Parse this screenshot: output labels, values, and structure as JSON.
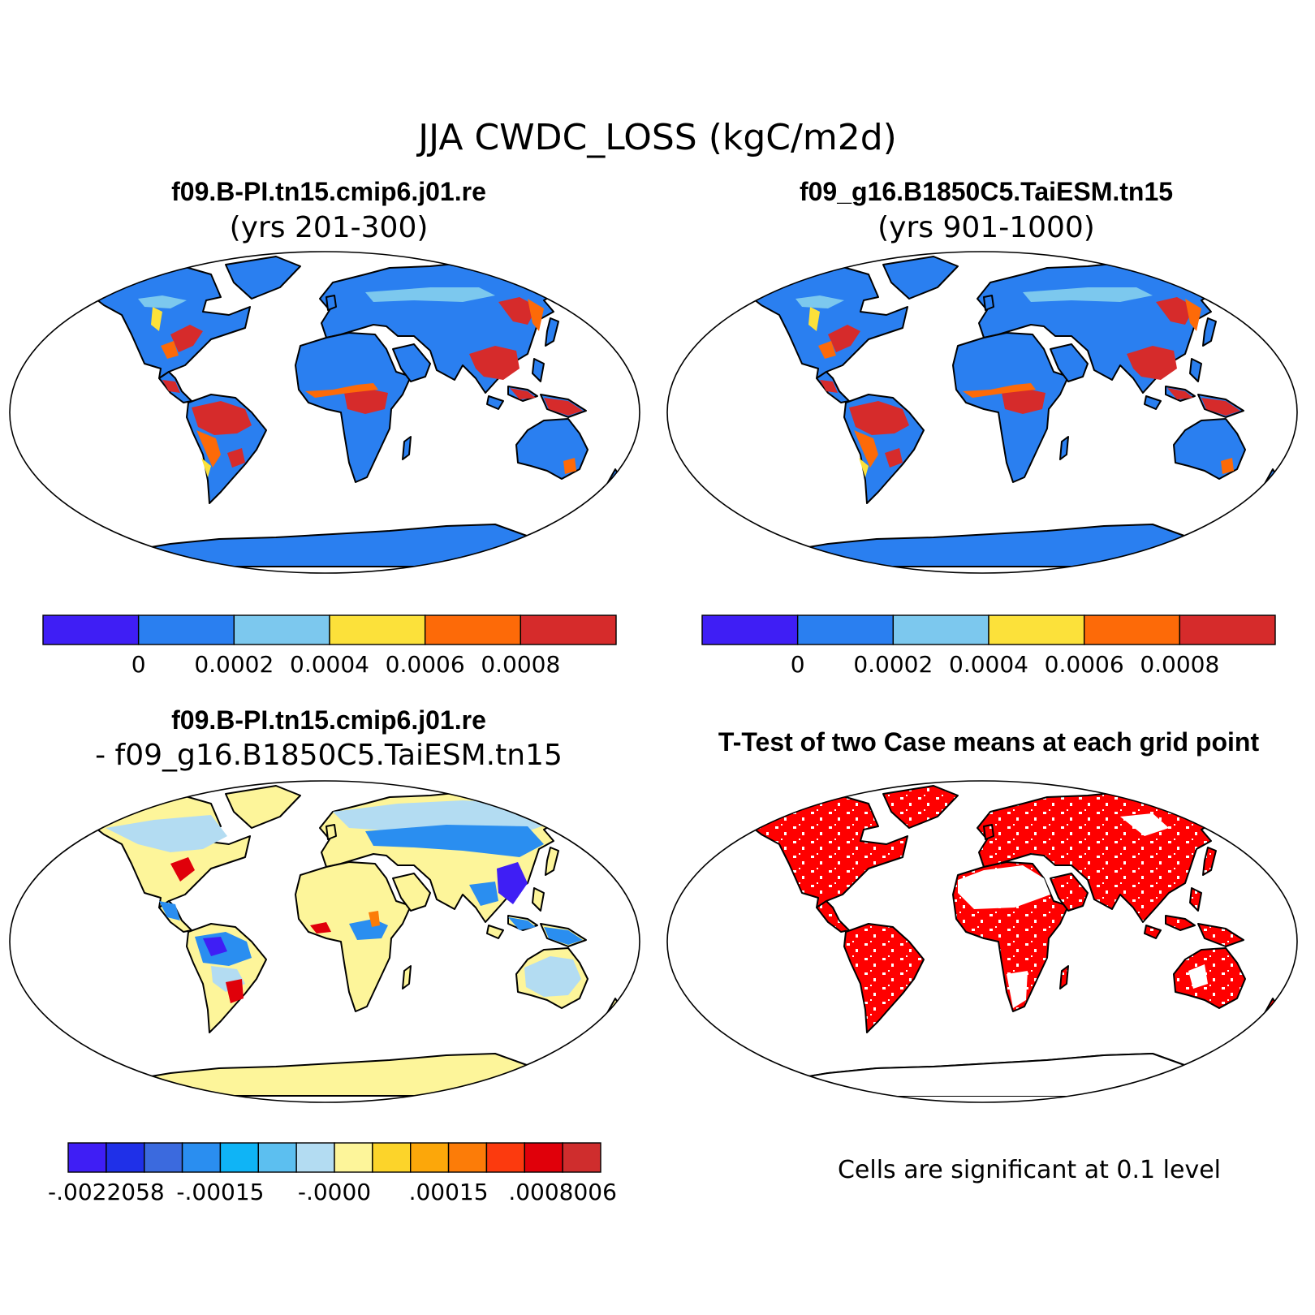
{
  "figure": {
    "title": "JJA CWDC_LOSS (kgC/m2d)"
  },
  "panels": [
    {
      "id": "case1",
      "title_line1": "f09.B-PI.tn15.cmip6.j01.re",
      "title_line2": "(yrs 201-300)",
      "colorbar": {
        "colors": [
          "#3f1ef5",
          "#2a7ff0",
          "#7cc8ee",
          "#fce13a",
          "#fd6a08",
          "#d62b2b"
        ],
        "labels": [
          "0",
          "0.0002",
          "0.0004",
          "0.0006",
          "0.0008"
        ]
      }
    },
    {
      "id": "case2",
      "title_line1": "f09_g16.B1850C5.TaiESM.tn15",
      "title_line2": "(yrs 901-1000)",
      "colorbar": {
        "colors": [
          "#3f1ef5",
          "#2a7ff0",
          "#7cc8ee",
          "#fce13a",
          "#fd6a08",
          "#d62b2b"
        ],
        "labels": [
          "0",
          "0.0002",
          "0.0004",
          "0.0006",
          "0.0008"
        ]
      }
    },
    {
      "id": "diff",
      "title_line1": "f09.B-PI.tn15.cmip6.j01.re",
      "title_line2": "- f09_g16.B1850C5.TaiESM.tn15",
      "colorbar": {
        "colors": [
          "#3f1ef5",
          "#1f30e8",
          "#3b6ade",
          "#2a8ef0",
          "#0fb4f6",
          "#5cbff0",
          "#b3dcf2",
          "#fdf59a",
          "#fcd42a",
          "#fca70a",
          "#fc7c08",
          "#fc3a0e",
          "#e0000a",
          "#cf2d2d"
        ],
        "labels": [
          "-.0022058",
          "-.00015",
          "-.0000",
          ".00015",
          ".0008006"
        ]
      }
    },
    {
      "id": "ttest",
      "title_line1": "T-Test of two Case means at each grid point",
      "note": "Cells are significant at 0.1 level"
    }
  ],
  "map_colors": {
    "case_land": "#2a7ff0",
    "case_hot": "#d62b2b",
    "case_warm": "#fd6a08",
    "case_mid": "#fce13a",
    "case_light": "#7cc8ee",
    "diff_land": "#fdf59a",
    "diff_blue": "#2a8ef0",
    "diff_lightblue": "#b3dcf2",
    "diff_darkblue": "#3f1ef5",
    "diff_red": "#e0000a",
    "diff_orange": "#fc7c08",
    "sig_red": "#ff0000"
  }
}
